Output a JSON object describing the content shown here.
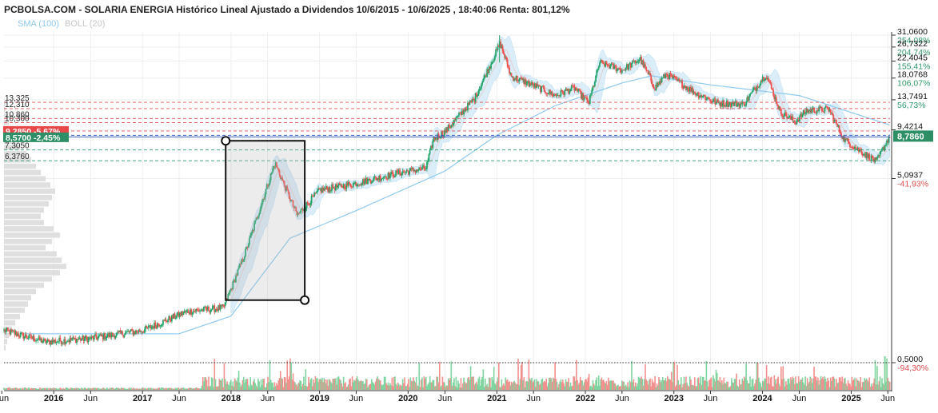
{
  "header": {
    "title": "PCBOLSA.COM - SOLARIA ENERGIA Histórico Lineal Ajustado a Dividendos 10/6/2015 - 10/6/2025 , 18:40:06 Renta: 801,12%"
  },
  "legend": {
    "sma": "SMA (100)",
    "boll": "BOLL (20)"
  },
  "colors": {
    "up": "#26a66a",
    "down": "#ef5350",
    "sma": "#8ec9ee",
    "boll_fill": "#d5ebf9",
    "boll_line": "#e2cfcf",
    "vol_profile": "#dcdcdc",
    "level_red": "#e05050",
    "level_green": "#2e9a6a",
    "level_blue": "#3a5fc8",
    "price_tag": "#2e8f66",
    "left_tag": "#e84848"
  },
  "chart_data": {
    "type": "candlestick",
    "scale": "log",
    "ylim": [
      0.5,
      31.06
    ],
    "x_range": [
      "2015-06-10",
      "2025-06-10"
    ],
    "x_ticks": [
      {
        "date": "2015-06",
        "label": "Jun",
        "bold": false
      },
      {
        "date": "2016-01",
        "label": "2016",
        "bold": true
      },
      {
        "date": "2016-06",
        "label": "Jun",
        "bold": false
      },
      {
        "date": "2017-01",
        "label": "2017",
        "bold": true
      },
      {
        "date": "2017-06",
        "label": "Jun",
        "bold": false
      },
      {
        "date": "2018-01",
        "label": "2018",
        "bold": true
      },
      {
        "date": "2018-06",
        "label": "Jun",
        "bold": false
      },
      {
        "date": "2019-01",
        "label": "2019",
        "bold": true
      },
      {
        "date": "2019-06",
        "label": "Jun",
        "bold": false
      },
      {
        "date": "2020-01",
        "label": "2020",
        "bold": true
      },
      {
        "date": "2020-06",
        "label": "Jun",
        "bold": false
      },
      {
        "date": "2021-01",
        "label": "2021",
        "bold": true
      },
      {
        "date": "2021-06",
        "label": "Jun",
        "bold": false
      },
      {
        "date": "2022-01",
        "label": "2022",
        "bold": true
      },
      {
        "date": "2022-06",
        "label": "Jun",
        "bold": false
      },
      {
        "date": "2023-01",
        "label": "2023",
        "bold": true
      },
      {
        "date": "2023-06",
        "label": "Jun",
        "bold": false
      },
      {
        "date": "2024-01",
        "label": "2024",
        "bold": true
      },
      {
        "date": "2024-06",
        "label": "Jun",
        "bold": false
      },
      {
        "date": "2025-01",
        "label": "2025",
        "bold": true
      },
      {
        "date": "2025-06",
        "label": "Jun",
        "bold": false
      }
    ],
    "y_ticks": [
      {
        "price": 31.06,
        "label": "31,0600",
        "pct": "254,08%",
        "pct_color": "green"
      },
      {
        "price": 26.7322,
        "label": "26,7322",
        "pct": "204,74%",
        "pct_color": "green"
      },
      {
        "price": 22.4045,
        "label": "22,4045",
        "pct": "155,41%",
        "pct_color": "green"
      },
      {
        "price": 18.0768,
        "label": "18,0768",
        "pct": "106,07%",
        "pct_color": "green"
      },
      {
        "price": 13.7491,
        "label": "13,7491",
        "pct": "56,73%",
        "pct_color": "green"
      },
      {
        "price": 9.4214,
        "label": "9,4214",
        "pct": "",
        "pct_color": "green"
      },
      {
        "price": 5.0937,
        "label": "5,0937",
        "pct": "-41,93%",
        "pct_color": "red"
      },
      {
        "price": 0.5,
        "label": "0,5000",
        "pct": "-94,30%",
        "pct_color": "red"
      }
    ],
    "levels": [
      {
        "price": 13.325,
        "label": "13,325",
        "style": "red"
      },
      {
        "price": 12.31,
        "label": "12,310",
        "style": "red"
      },
      {
        "price": 10.86,
        "label": "10,860",
        "style": "red"
      },
      {
        "price": 10.3,
        "label": "10,300",
        "style": "red"
      },
      {
        "price": 9.285,
        "label": "",
        "style": "red"
      },
      {
        "price": 7.305,
        "label": "7,3050",
        "style": "green"
      },
      {
        "price": 6.376,
        "label": "6,3760",
        "style": "green"
      },
      {
        "price": 8.786,
        "label": "",
        "style": "blue"
      }
    ],
    "left_tags": [
      {
        "price": 9.285,
        "text": "9,2850 -5,67%",
        "color": "red"
      },
      {
        "price": 8.57,
        "text": "8,5700 -2,45%",
        "color": "green"
      }
    ],
    "last_price": {
      "price": 8.786,
      "label": "8,7860"
    },
    "support_line": 0.5,
    "closes": [
      {
        "date": "2015-06-10",
        "close": 0.75
      },
      {
        "date": "2015-12-01",
        "close": 0.65
      },
      {
        "date": "2016-06-01",
        "close": 0.68
      },
      {
        "date": "2017-01-01",
        "close": 0.75
      },
      {
        "date": "2017-07-01",
        "close": 0.95
      },
      {
        "date": "2017-12-01",
        "close": 1.0
      },
      {
        "date": "2018-03-01",
        "close": 2.0
      },
      {
        "date": "2018-07-01",
        "close": 6.2
      },
      {
        "date": "2018-10-01",
        "close": 3.2
      },
      {
        "date": "2019-01-01",
        "close": 4.4
      },
      {
        "date": "2019-06-01",
        "close": 4.8
      },
      {
        "date": "2019-12-01",
        "close": 5.5
      },
      {
        "date": "2020-03-15",
        "close": 5.8
      },
      {
        "date": "2020-04-15",
        "close": 8.4
      },
      {
        "date": "2020-06-01",
        "close": 9.2
      },
      {
        "date": "2020-10-01",
        "close": 14.0
      },
      {
        "date": "2021-01-15",
        "close": 28.0
      },
      {
        "date": "2021-03-01",
        "close": 18.5
      },
      {
        "date": "2021-06-01",
        "close": 16.5
      },
      {
        "date": "2021-09-01",
        "close": 14.5
      },
      {
        "date": "2021-11-15",
        "close": 16.0
      },
      {
        "date": "2022-01-15",
        "close": 13.2
      },
      {
        "date": "2022-03-01",
        "close": 22.0
      },
      {
        "date": "2022-06-01",
        "close": 20.0
      },
      {
        "date": "2022-08-15",
        "close": 23.0
      },
      {
        "date": "2022-10-15",
        "close": 16.0
      },
      {
        "date": "2022-12-01",
        "close": 19.0
      },
      {
        "date": "2023-04-01",
        "close": 15.0
      },
      {
        "date": "2023-07-01",
        "close": 13.2
      },
      {
        "date": "2023-10-15",
        "close": 13.0
      },
      {
        "date": "2024-01-15",
        "close": 19.0
      },
      {
        "date": "2024-03-15",
        "close": 11.8
      },
      {
        "date": "2024-05-15",
        "close": 10.4
      },
      {
        "date": "2024-07-01",
        "close": 12.0
      },
      {
        "date": "2024-10-01",
        "close": 12.2
      },
      {
        "date": "2024-12-01",
        "close": 8.4
      },
      {
        "date": "2025-02-01",
        "close": 7.3
      },
      {
        "date": "2025-04-15",
        "close": 6.3
      },
      {
        "date": "2025-06-10",
        "close": 8.786
      }
    ],
    "sma_100": [
      {
        "date": "2015-09-01",
        "value": 0.72
      },
      {
        "date": "2017-06-01",
        "value": 0.72
      },
      {
        "date": "2018-01-01",
        "value": 0.9
      },
      {
        "date": "2018-09-01",
        "value": 2.4
      },
      {
        "date": "2019-06-01",
        "value": 3.4
      },
      {
        "date": "2020-06-01",
        "value": 5.6
      },
      {
        "date": "2021-01-01",
        "value": 8.8
      },
      {
        "date": "2021-09-01",
        "value": 12.8
      },
      {
        "date": "2022-06-01",
        "value": 17.0
      },
      {
        "date": "2022-10-01",
        "value": 18.6
      },
      {
        "date": "2023-06-01",
        "value": 16.6
      },
      {
        "date": "2024-06-01",
        "value": 14.5
      },
      {
        "date": "2025-06-10",
        "value": 10.0
      }
    ],
    "rectangle": {
      "start": "2017-12-10",
      "end": "2018-11-01",
      "low": 1.1,
      "high": 8.2
    }
  }
}
